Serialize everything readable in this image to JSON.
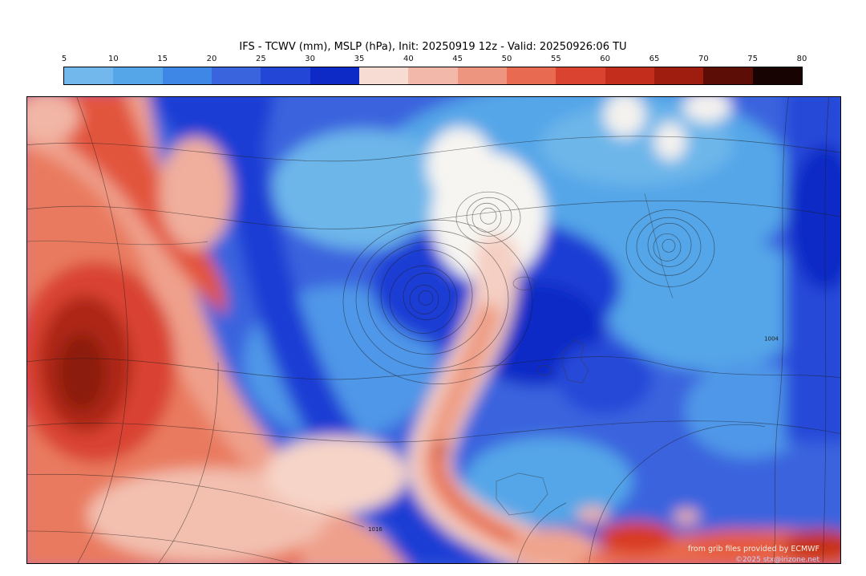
{
  "title": "IFS - TCWV (mm), MSLP (hPa), Init: 20250919 12z - Valid: 20250926:06 TU",
  "colorbar": {
    "ticks": [
      "5",
      "10",
      "15",
      "20",
      "25",
      "30",
      "35",
      "40",
      "45",
      "50",
      "55",
      "60",
      "65",
      "70",
      "75",
      "80"
    ],
    "cell_colors": [
      "#72b8ec",
      "#55a6e8",
      "#3f87e6",
      "#3a63de",
      "#2446d6",
      "#0e2ac6",
      "#f7dcd4",
      "#f2b9ab",
      "#ee957f",
      "#e86a50",
      "#d94330",
      "#c22d1c",
      "#9e1d0f",
      "#5c0e06",
      "#160302"
    ]
  },
  "map": {
    "isobar_labels": [
      {
        "text": "1016"
      },
      {
        "text": "1004"
      }
    ],
    "credit_line1": "from grib files provided by ECMWF",
    "credit_line2": "©2025 stx@irizone.net"
  }
}
